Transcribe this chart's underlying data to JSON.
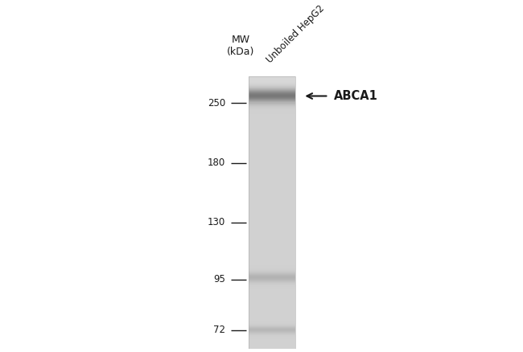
{
  "background_color": "#ffffff",
  "mw_label": "MW\n(kDa)",
  "sample_label": "Unboiled HepG2",
  "band_label": "← ABCA1",
  "mw_markers": [
    250,
    180,
    130,
    95,
    72
  ],
  "text_color": "#1a1a1a",
  "tick_font_size": 8.5,
  "label_font_size": 9,
  "sample_font_size": 8.5,
  "arrow_label_font_size": 10.5,
  "lane_base_gray": 0.82,
  "band_250_intensity": 0.38,
  "band_250_sigma": 4.5,
  "band_95_intensity": 0.12,
  "band_95_sigma": 2.5,
  "band_72_intensity": 0.1,
  "band_72_sigma": 2.0,
  "figsize": [
    6.5,
    4.38
  ],
  "dpi": 100
}
